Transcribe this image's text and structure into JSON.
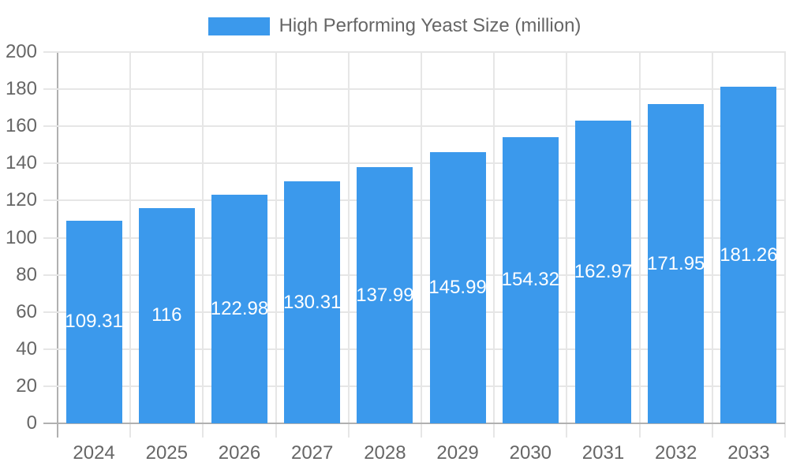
{
  "chart_data": {
    "type": "bar",
    "title": "High Performing Yeast Size (million)",
    "legend": {
      "label": "High Performing Yeast Size (million)",
      "position": "top-center"
    },
    "categories": [
      "2024",
      "2025",
      "2026",
      "2027",
      "2028",
      "2029",
      "2030",
      "2031",
      "2032",
      "2033"
    ],
    "values": [
      109.31,
      116,
      122.98,
      130.31,
      137.99,
      145.99,
      154.32,
      162.97,
      171.95,
      181.26
    ],
    "value_labels": [
      "109.31",
      "116",
      "122.98",
      "130.31",
      "137.99",
      "145.99",
      "154.32",
      "162.97",
      "171.95",
      "181.26"
    ],
    "xlabel": "",
    "ylabel": "",
    "ylim": [
      0,
      200
    ],
    "ytick_step": 20,
    "ytick_labels": [
      "0",
      "20",
      "40",
      "60",
      "80",
      "100",
      "120",
      "140",
      "160",
      "180",
      "200"
    ],
    "grid": true,
    "value_label_position": "inside-middle",
    "colors": {
      "bar_fill": "#3b99ec",
      "axis_label": "#666666",
      "value_label": "#ffffff",
      "gridline": "#e6e6e6",
      "axis_line": "#b0b0b0",
      "background": "#ffffff"
    }
  }
}
